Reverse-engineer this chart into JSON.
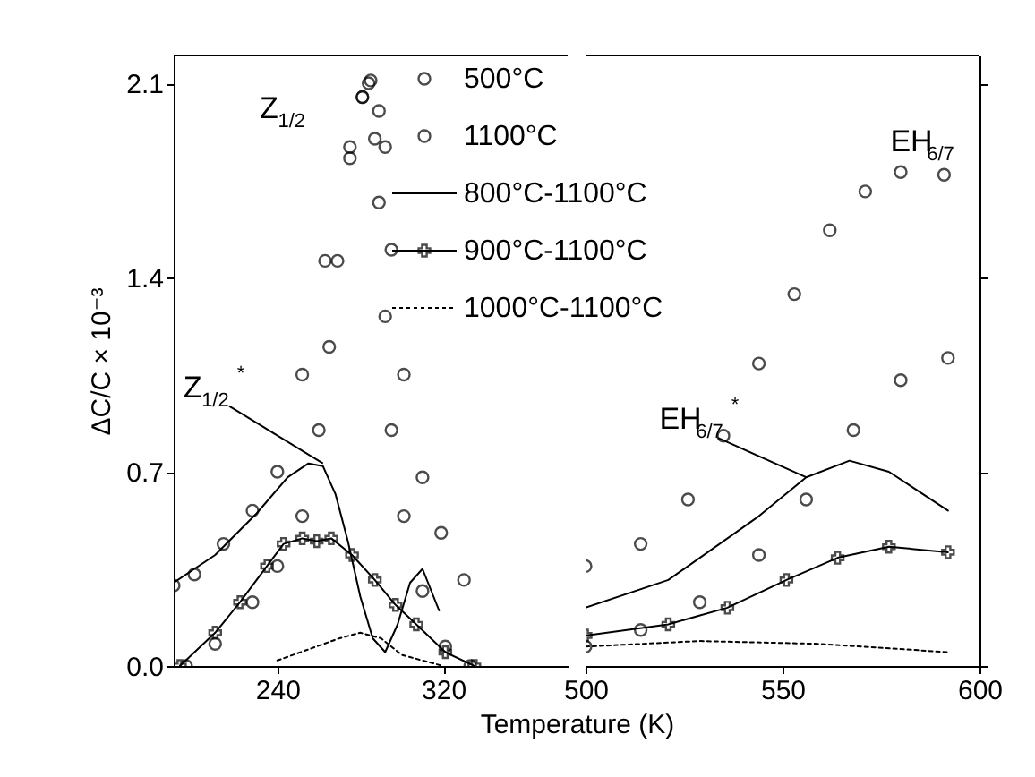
{
  "chart_data": [
    {
      "type": "line",
      "xlabel": "Temperature (K)",
      "ylabel": "ΔC/C × 10⁻³",
      "xlim": [
        190,
        380
      ],
      "xticks": [
        240,
        320
      ],
      "ylim": [
        0,
        2.2
      ],
      "yticks": [
        {
          "value": 0,
          "label": "0.0"
        },
        0.7,
        1.4,
        2.1
      ],
      "legend": "top right",
      "tick_labels": "xy",
      "series": [
        {
          "name": "500°C",
          "type": "scatter",
          "marker": "circle",
          "color": "#000000",
          "x": [
            190,
            200,
            214,
            228,
            240,
            252,
            263,
            275,
            281,
            285,
            289,
            292,
            295,
            301,
            310,
            319,
            330
          ],
          "values": [
            0.29,
            0.33,
            0.44,
            0.56,
            0.7,
            1.05,
            1.46,
            1.87,
            2.05,
            2.11,
            2.0,
            1.87,
            1.5,
            1.05,
            0.68,
            0.48,
            0.31
          ]
        },
        {
          "name": "1100°C",
          "type": "scatter",
          "marker": "circle",
          "color": "#000000",
          "x": [
            196,
            210,
            228,
            240,
            252,
            260,
            265,
            269,
            275,
            281,
            284,
            287,
            289,
            292,
            295,
            301,
            310,
            321,
            333
          ],
          "values": [
            0.0,
            0.08,
            0.23,
            0.36,
            0.54,
            0.85,
            1.15,
            1.46,
            1.83,
            2.05,
            2.1,
            1.9,
            1.67,
            1.26,
            0.85,
            0.54,
            0.27,
            0.07,
            0.0
          ]
        },
        {
          "name": "800°C-1100°C",
          "type": "line",
          "line_style": "solid",
          "color": "#000000",
          "x": [
            190,
            210,
            230,
            245,
            255,
            262,
            268,
            274,
            280,
            286,
            292,
            298,
            304,
            310,
            318
          ],
          "values": [
            0.3,
            0.4,
            0.55,
            0.68,
            0.73,
            0.72,
            0.62,
            0.45,
            0.25,
            0.1,
            0.05,
            0.15,
            0.3,
            0.35,
            0.2
          ]
        },
        {
          "name": "900°C-1100°C",
          "type": "line",
          "line_style": "solid",
          "marker": "cross",
          "color": "#000000",
          "x": [
            193,
            210,
            222,
            235,
            243,
            252,
            259,
            266,
            276,
            287,
            297,
            307,
            321,
            335
          ],
          "values": [
            0.0,
            0.12,
            0.23,
            0.36,
            0.44,
            0.46,
            0.45,
            0.46,
            0.4,
            0.31,
            0.22,
            0.15,
            0.05,
            0.0
          ]
        },
        {
          "name": "1000°C-1100°C",
          "type": "line",
          "line_style": "dotted",
          "color": "#000000",
          "x": [
            240,
            255,
            270,
            280,
            290,
            300,
            310,
            320
          ],
          "values": [
            0.02,
            0.06,
            0.1,
            0.12,
            0.1,
            0.04,
            0.02,
            0.0
          ]
        }
      ],
      "annotations": [
        {
          "text": "Z$_{1/2}$",
          "x": 285,
          "y": 2.11
        },
        {
          "text": "Z$_{1/2}$$^{*}$",
          "x": 262,
          "y": 0.73
        }
      ]
    },
    {
      "type": "line",
      "xlim": [
        500,
        600
      ],
      "xticks": [
        500,
        550,
        600
      ],
      "ylim": [
        0,
        2.2
      ],
      "yticks": [
        {
          "value": 0,
          "label": null
        },
        {
          "value": 0.7,
          "label": null
        },
        {
          "value": 1.4,
          "label": null
        },
        {
          "value": 2.1,
          "label": null
        }
      ],
      "tick_labels": "x",
      "series": [
        {
          "type": "scatter",
          "marker": "circle",
          "color": "#000000",
          "x": [
            500,
            514,
            526,
            535,
            544,
            553,
            562,
            571,
            580,
            591
          ],
          "values": [
            0.36,
            0.44,
            0.6,
            0.83,
            1.09,
            1.34,
            1.57,
            1.71,
            1.78,
            1.77
          ]
        },
        {
          "type": "scatter",
          "marker": "circle",
          "color": "#000000",
          "x": [
            500,
            514,
            529,
            544,
            556,
            568,
            580,
            592
          ],
          "values": [
            0.07,
            0.13,
            0.23,
            0.4,
            0.6,
            0.85,
            1.03,
            1.11
          ]
        },
        {
          "type": "line",
          "line_style": "solid",
          "color": "#000000",
          "x": [
            500,
            521,
            544,
            556,
            567,
            577,
            592
          ],
          "values": [
            0.21,
            0.31,
            0.54,
            0.68,
            0.74,
            0.7,
            0.56
          ]
        },
        {
          "type": "line",
          "line_style": "solid",
          "marker": "cross",
          "color": "#000000",
          "x": [
            500,
            521,
            536,
            551,
            564,
            577,
            592
          ],
          "values": [
            0.11,
            0.15,
            0.21,
            0.31,
            0.39,
            0.43,
            0.41
          ]
        },
        {
          "type": "line",
          "line_style": "dotted",
          "color": "#000000",
          "x": [
            500,
            529,
            559,
            592
          ],
          "values": [
            0.07,
            0.09,
            0.08,
            0.05
          ]
        }
      ],
      "annotations": [
        {
          "text": "EH$_{6/7}$",
          "x": 591,
          "y": 1.77
        },
        {
          "text": "EH$_{6/7}$$^{*}$",
          "x": 556,
          "y": 0.68
        }
      ]
    }
  ]
}
